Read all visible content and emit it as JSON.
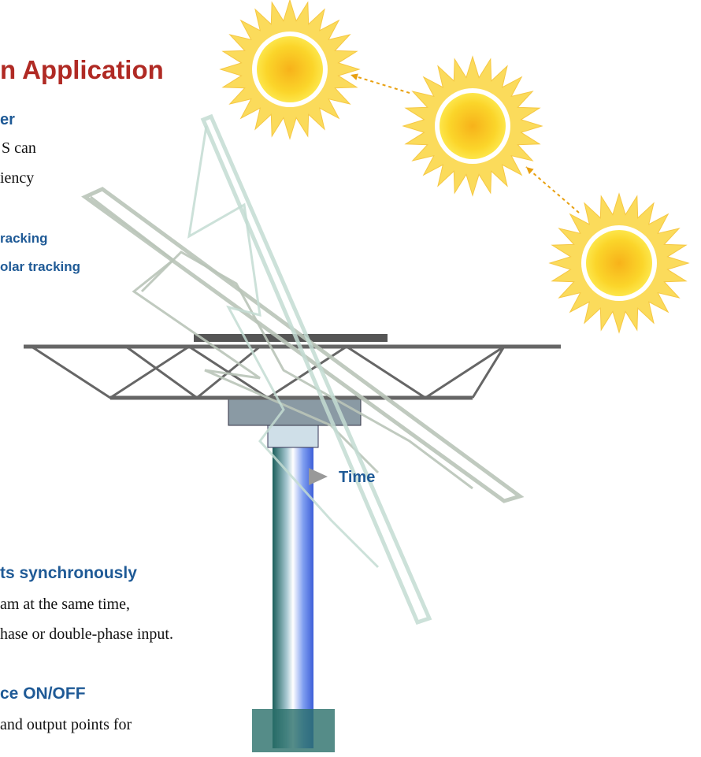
{
  "title": "n Application",
  "section_1": {
    "heading": "er",
    "lines": [
      "S can",
      "iency"
    ]
  },
  "legend": {
    "items": [
      "racking",
      "olar tracking"
    ]
  },
  "time_label": "Time",
  "section_2": {
    "heading": "ts synchronously",
    "lines": [
      "am at the same time,",
      "hase or double-phase input."
    ]
  },
  "section_3": {
    "heading": "ce ON/OFF",
    "lines": [
      "and output points for"
    ]
  }
}
